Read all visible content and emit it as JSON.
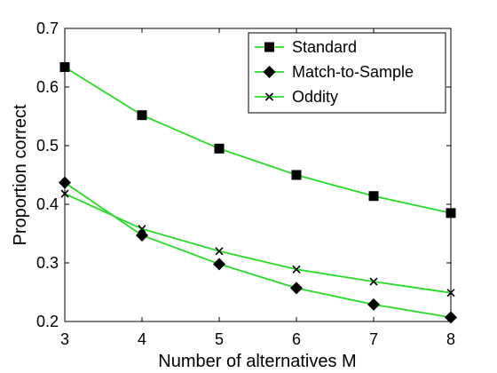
{
  "chart_data": {
    "type": "line",
    "title": "",
    "xlabel": "Number of alternatives M",
    "ylabel": "Proportion correct",
    "xlim": [
      3,
      8
    ],
    "ylim": [
      0.2,
      0.7
    ],
    "xticks": [
      3,
      4,
      5,
      6,
      7,
      8
    ],
    "yticks": [
      0.2,
      0.3,
      0.4,
      0.5,
      0.6,
      0.7
    ],
    "ytick_labels": [
      "0.2",
      "0.3",
      "0.4",
      "0.5",
      "0.6",
      "0.7"
    ],
    "grid": false,
    "legend_position": "top-right",
    "line_color": "#22dd22",
    "marker_color": "#000000",
    "x": [
      3,
      4,
      5,
      6,
      7,
      8
    ],
    "series": [
      {
        "name": "Standard",
        "marker": "square",
        "values": [
          0.634,
          0.552,
          0.495,
          0.45,
          0.414,
          0.385
        ]
      },
      {
        "name": "Match-to-Sample",
        "marker": "diamond",
        "values": [
          0.437,
          0.347,
          0.298,
          0.257,
          0.229,
          0.207
        ]
      },
      {
        "name": "Oddity",
        "marker": "x",
        "values": [
          0.418,
          0.358,
          0.32,
          0.289,
          0.268,
          0.249
        ]
      }
    ]
  }
}
